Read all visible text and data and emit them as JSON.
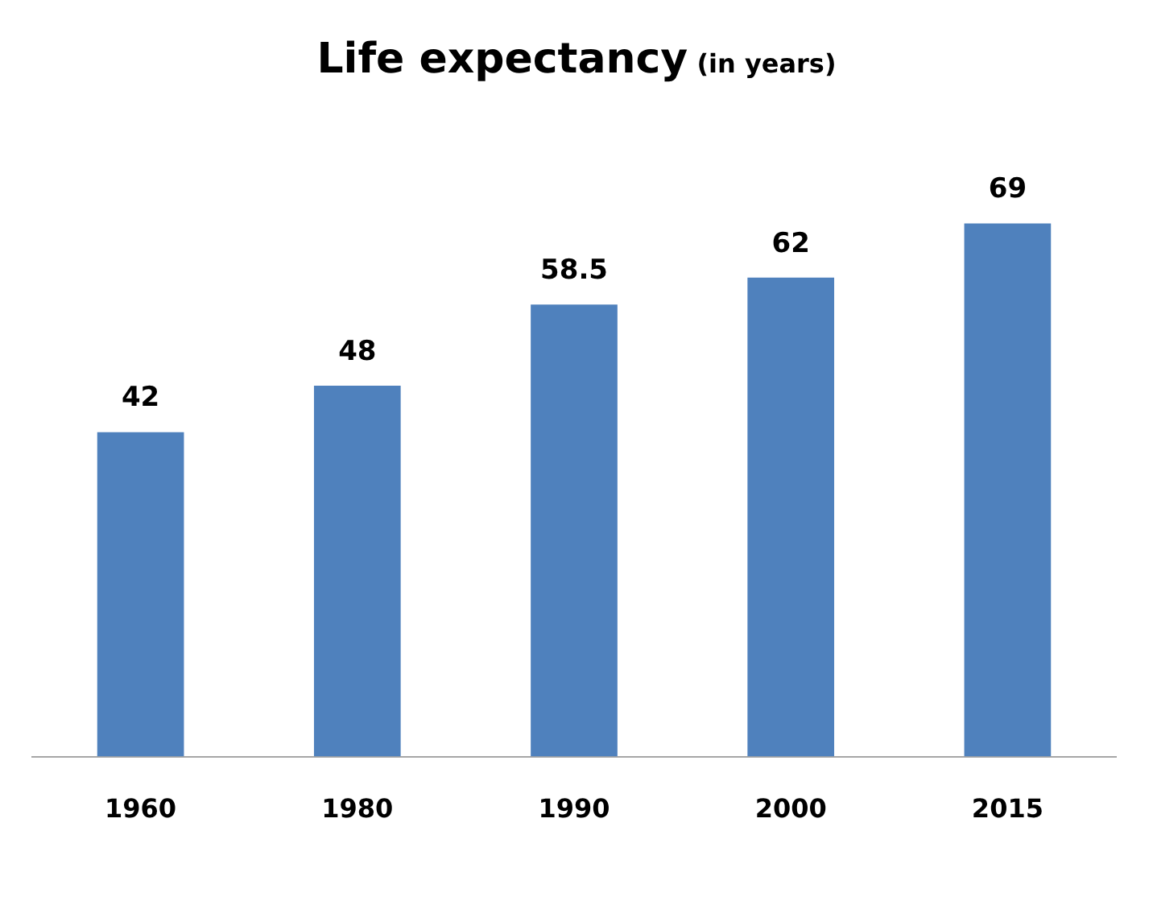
{
  "chart_data": {
    "type": "bar",
    "title": "Life expectancy",
    "subtitle": "(in years)",
    "categories": [
      "1960",
      "1980",
      "1990",
      "2000",
      "2015"
    ],
    "values": [
      42,
      48,
      58.5,
      62,
      69
    ],
    "color": "#4f81bd",
    "data_labels": true
  }
}
